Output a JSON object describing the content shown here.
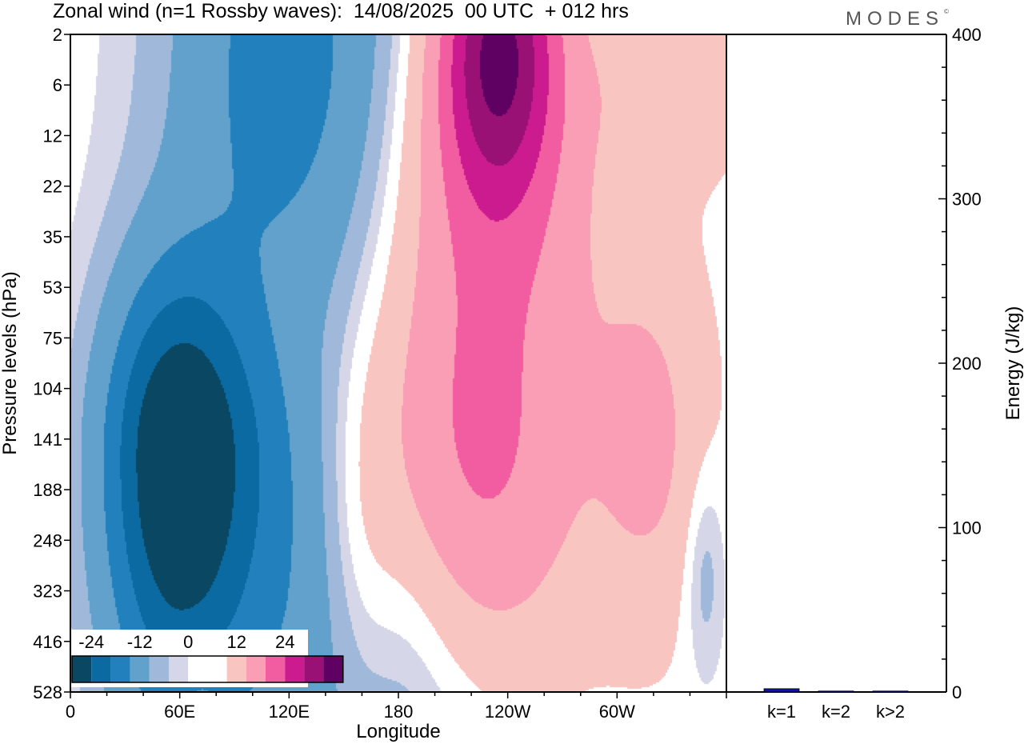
{
  "title": "Zonal wind (n=1 Rossby waves):  14/08/2025  00 UTC  + 012 hrs",
  "brand": "MODES",
  "brand_mark": "©",
  "colors": {
    "neg": [
      "#0a4763",
      "#0b6aa1",
      "#2281bd",
      "#61a1cc",
      "#a0b9da",
      "#d5d7e8"
    ],
    "pos": [
      "#f9c5c1",
      "#f99eb4",
      "#f15da0",
      "#cb1b8f",
      "#991174",
      "#5f0063"
    ],
    "zero": "#ffffff",
    "bar": "#1010aa"
  },
  "chart_data": [
    {
      "type": "heatmap",
      "title": "Zonal wind (n=1 Rossby waves):  14/08/2025  00 UTC  + 012 hrs",
      "xlabel": "Longitude",
      "ylabel": "Pressure levels (hPa)",
      "x_ticks": [
        "0",
        "60E",
        "120E",
        "180",
        "120W",
        "60W"
      ],
      "y_ticks": [
        "2",
        "6",
        "12",
        "22",
        "35",
        "53",
        "75",
        "104",
        "141",
        "188",
        "248",
        "323",
        "416",
        "528"
      ],
      "colorbar": {
        "labels": [
          "-24",
          "-12",
          "0",
          "12",
          "24"
        ],
        "levels": [
          -30,
          -24,
          -18,
          -12,
          -6,
          -3,
          3,
          6,
          12,
          18,
          24,
          30,
          36
        ]
      },
      "blobs": [
        {
          "sign": "neg",
          "lon": 140,
          "lev": 12,
          "lw": 60,
          "lh": 2.8,
          "amp": 10,
          "stretchDown": 1.8
        },
        {
          "sign": "neg",
          "lon": 118,
          "lev": 0.5,
          "lw": 45,
          "lh": 4,
          "amp": 15
        },
        {
          "sign": "neg",
          "lon": 57,
          "lev": 8.3,
          "lw": 28,
          "lh": 2.6,
          "amp": 27,
          "stretchDown": 1.4
        },
        {
          "sign": "neg",
          "lon": 95,
          "lev": 8.3,
          "lw": 40,
          "lh": 2,
          "amp": 6
        },
        {
          "sign": "neg",
          "lon": 348,
          "lev": 10.6,
          "lw": 8,
          "lh": 1.5,
          "amp": 5
        },
        {
          "sign": "pos",
          "lon": 235,
          "lev": 0.2,
          "lw": 22,
          "lh": 2,
          "amp": 26
        },
        {
          "sign": "pos",
          "lon": 232,
          "lev": 3,
          "lw": 40,
          "lh": 3,
          "amp": 11
        },
        {
          "sign": "pos",
          "lon": 330,
          "lev": 1,
          "lw": 28,
          "lh": 1.2,
          "amp": 5
        },
        {
          "sign": "pos",
          "lon": 222,
          "lev": 9,
          "lw": 40,
          "lh": 2.8,
          "amp": 13
        },
        {
          "sign": "pos",
          "lon": 158,
          "lev": 10.5,
          "lw": 18,
          "lh": 2.8,
          "amp": 6
        },
        {
          "sign": "pos",
          "lon": 318,
          "lev": 8,
          "lw": 22,
          "lh": 2.5,
          "amp": 7
        },
        {
          "sign": "pos",
          "lon": 70,
          "lev": 12.9,
          "lw": 10,
          "lh": 0.7,
          "amp": 4
        }
      ]
    },
    {
      "type": "bar",
      "categories": [
        "k=1",
        "k=2",
        "k>2"
      ],
      "values": [
        2,
        0.3,
        0.3
      ],
      "ylabel": "Energy (J/kg)",
      "ylim": [
        0,
        400
      ],
      "y_ticks": [
        "0",
        "100",
        "200",
        "300",
        "400"
      ]
    }
  ]
}
